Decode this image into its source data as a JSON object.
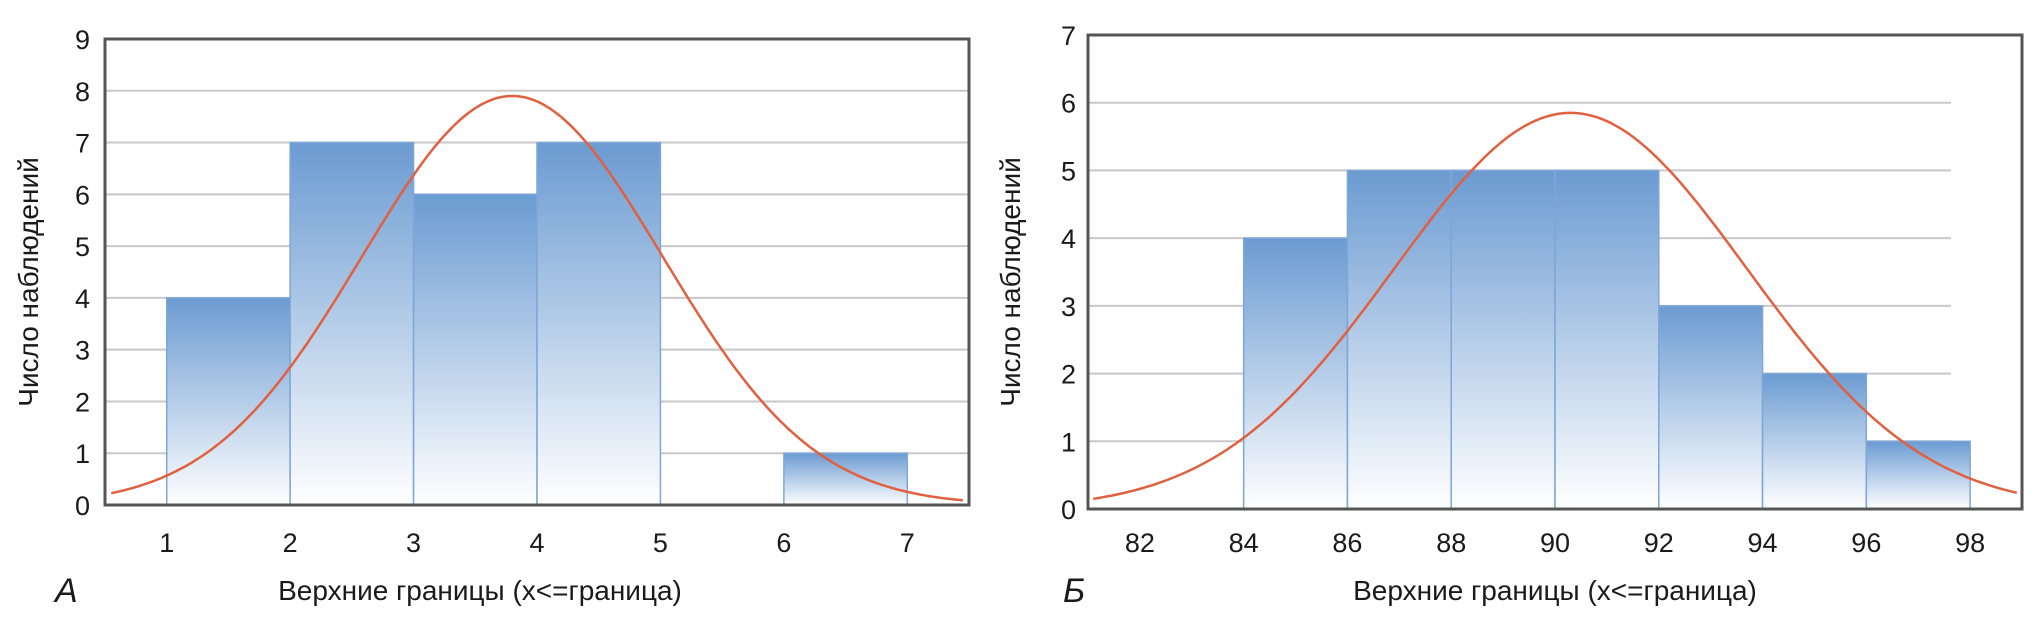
{
  "chart_data": [
    {
      "type": "bar",
      "panel_label": "А",
      "title": "",
      "xlabel": "Верхние границы (x<=граница)",
      "ylabel": "Число наблюдений",
      "xlim": [
        0.5,
        7.5
      ],
      "ylim": [
        0,
        9
      ],
      "yticks": [
        0,
        1,
        2,
        3,
        4,
        5,
        6,
        7,
        8,
        9
      ],
      "xticks": [
        1,
        2,
        3,
        4,
        5,
        6,
        7
      ],
      "grid": true,
      "bins": [
        {
          "from": 1,
          "to": 2,
          "count": 4
        },
        {
          "from": 2,
          "to": 3,
          "count": 7
        },
        {
          "from": 3,
          "to": 4,
          "count": 6
        },
        {
          "from": 4,
          "to": 5,
          "count": 7
        },
        {
          "from": 5,
          "to": 6,
          "count": 0
        },
        {
          "from": 6,
          "to": 7,
          "count": 1
        }
      ],
      "normal_curve": {
        "mean": 3.8,
        "sd": 1.22,
        "peak": 7.9,
        "x_range": [
          0.55,
          7.45
        ]
      },
      "colors": {
        "bar_top": "#6b9bd2",
        "bar_bottom": "#ffffff",
        "curve": "#e0603f",
        "grid": "#c8c8c8",
        "frame": "#555555"
      }
    },
    {
      "type": "bar",
      "panel_label": "Б",
      "title": "",
      "xlabel": "Верхние границы (x<=граница)",
      "ylabel": "Число наблюдений",
      "xlim": [
        81,
        99
      ],
      "ylim": [
        0,
        7
      ],
      "yticks": [
        0,
        1,
        2,
        3,
        4,
        5,
        6,
        7
      ],
      "xticks": [
        82,
        84,
        86,
        88,
        90,
        92,
        94,
        96,
        98
      ],
      "grid": true,
      "bins": [
        {
          "from": 84,
          "to": 86,
          "count": 4
        },
        {
          "from": 86,
          "to": 88,
          "count": 5
        },
        {
          "from": 88,
          "to": 90,
          "count": 5
        },
        {
          "from": 90,
          "to": 92,
          "count": 5
        },
        {
          "from": 92,
          "to": 94,
          "count": 3
        },
        {
          "from": 94,
          "to": 96,
          "count": 2
        },
        {
          "from": 96,
          "to": 98,
          "count": 1
        }
      ],
      "normal_curve": {
        "mean": 90.3,
        "sd": 3.4,
        "peak": 5.85,
        "x_range": [
          81.1,
          98.9
        ]
      },
      "colors": {
        "bar_top": "#6b9bd2",
        "bar_bottom": "#ffffff",
        "curve": "#e0603f",
        "grid": "#c8c8c8",
        "frame": "#555555"
      }
    }
  ]
}
